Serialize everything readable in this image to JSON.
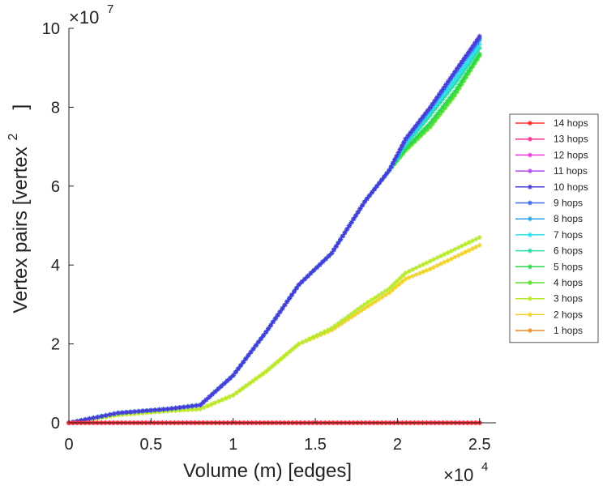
{
  "chart_data": {
    "type": "line",
    "title": "",
    "xlabel": "Volume (m) [edges]",
    "ylabel": "Vertex pairs [vertex",
    "ylabel_superscript": "2",
    "ylabel_close": "]",
    "x_multiplier": "×10",
    "x_multiplier_exp": "4",
    "y_multiplier": "×10",
    "y_multiplier_exp": "7",
    "xlim": [
      0,
      2.6
    ],
    "ylim": [
      0,
      10
    ],
    "x_ticks": [
      0,
      0.5,
      1,
      1.5,
      2,
      2.5
    ],
    "x_tick_labels": [
      "0",
      "0.5",
      "1",
      "1.5",
      "2",
      "2.5"
    ],
    "y_ticks": [
      0,
      2,
      4,
      6,
      8,
      10
    ],
    "y_tick_labels": [
      "0",
      "2",
      "4",
      "6",
      "8",
      "10"
    ],
    "legend_position": "right",
    "grid": false,
    "marker": "star",
    "series": [
      {
        "name": "14 hops",
        "color": "#ff2a2a",
        "x": [
          0,
          2.5
        ],
        "y": [
          0,
          0
        ]
      },
      {
        "name": "13 hops",
        "color": "#ff2a8a",
        "x": [
          0,
          2.5
        ],
        "y": [
          0,
          0
        ]
      },
      {
        "name": "12 hops",
        "color": "#ee3ad6",
        "x": [
          0,
          2.5
        ],
        "y": [
          0,
          0
        ]
      },
      {
        "name": "11 hops",
        "color": "#b04ae8",
        "x": [
          0,
          2.5
        ],
        "y": [
          0,
          0
        ]
      },
      {
        "name": "10 hops",
        "color": "#4a3ad8",
        "x": [
          0,
          0.3,
          0.6,
          0.8,
          1.0,
          1.2,
          1.4,
          1.6,
          1.8,
          1.95,
          2.05,
          2.2,
          2.35,
          2.5
        ],
        "y": [
          0,
          0.25,
          0.35,
          0.45,
          1.2,
          2.3,
          3.5,
          4.3,
          5.6,
          6.4,
          7.2,
          8.0,
          8.9,
          9.8
        ]
      },
      {
        "name": "9 hops",
        "color": "#3a6ae8",
        "x": [
          0,
          0.3,
          0.6,
          0.8,
          1.0,
          1.2,
          1.4,
          1.6,
          1.8,
          1.95,
          2.05,
          2.2,
          2.35,
          2.5
        ],
        "y": [
          0,
          0.25,
          0.35,
          0.45,
          1.2,
          2.3,
          3.5,
          4.3,
          5.6,
          6.4,
          7.2,
          8.0,
          8.9,
          9.75
        ]
      },
      {
        "name": "8 hops",
        "color": "#2aa2ee",
        "x": [
          0,
          0.3,
          0.6,
          0.8,
          1.0,
          1.2,
          1.4,
          1.6,
          1.8,
          1.95,
          2.05,
          2.2,
          2.35,
          2.5
        ],
        "y": [
          0,
          0.25,
          0.35,
          0.45,
          1.2,
          2.3,
          3.5,
          4.3,
          5.6,
          6.4,
          7.15,
          7.95,
          8.85,
          9.7
        ]
      },
      {
        "name": "7 hops",
        "color": "#2ae2ee",
        "x": [
          0,
          0.3,
          0.6,
          0.8,
          1.0,
          1.2,
          1.4,
          1.6,
          1.8,
          1.95,
          2.05,
          2.2,
          2.35,
          2.5
        ],
        "y": [
          0,
          0.25,
          0.35,
          0.45,
          1.2,
          2.3,
          3.5,
          4.3,
          5.6,
          6.4,
          7.1,
          7.9,
          8.7,
          9.6
        ]
      },
      {
        "name": "6 hops",
        "color": "#2ad8a8",
        "x": [
          0,
          0.3,
          0.6,
          0.8,
          1.0,
          1.2,
          1.4,
          1.6,
          1.8,
          1.95,
          2.05,
          2.2,
          2.35,
          2.5
        ],
        "y": [
          0,
          0.25,
          0.35,
          0.45,
          1.2,
          2.3,
          3.5,
          4.3,
          5.6,
          6.4,
          7.05,
          7.8,
          8.6,
          9.5
        ]
      },
      {
        "name": "5 hops",
        "color": "#2ad84a",
        "x": [
          0,
          0.3,
          0.6,
          0.8,
          1.0,
          1.2,
          1.4,
          1.6,
          1.8,
          1.95,
          2.05,
          2.2,
          2.35,
          2.5
        ],
        "y": [
          0,
          0.25,
          0.35,
          0.45,
          1.2,
          2.3,
          3.5,
          4.3,
          5.6,
          6.4,
          6.95,
          7.6,
          8.4,
          9.35
        ]
      },
      {
        "name": "4 hops",
        "color": "#5ae02a",
        "x": [
          0,
          0.3,
          0.6,
          0.8,
          1.0,
          1.2,
          1.4,
          1.6,
          1.8,
          1.95,
          2.05,
          2.2,
          2.35,
          2.5
        ],
        "y": [
          0,
          0.25,
          0.35,
          0.45,
          1.2,
          2.3,
          3.5,
          4.3,
          5.6,
          6.4,
          6.9,
          7.5,
          8.3,
          9.3
        ]
      },
      {
        "name": "3 hops",
        "color": "#b8ea2a",
        "x": [
          0,
          0.3,
          0.6,
          0.8,
          1.0,
          1.2,
          1.4,
          1.6,
          1.8,
          1.95,
          2.05,
          2.2,
          2.35,
          2.5
        ],
        "y": [
          0,
          0.2,
          0.3,
          0.35,
          0.7,
          1.3,
          2.0,
          2.4,
          3.0,
          3.4,
          3.8,
          4.1,
          4.4,
          4.7
        ]
      },
      {
        "name": "2 hops",
        "color": "#f0d22a",
        "x": [
          0,
          0.3,
          0.6,
          0.8,
          1.0,
          1.2,
          1.4,
          1.6,
          1.8,
          1.95,
          2.05,
          2.2,
          2.35,
          2.5
        ],
        "y": [
          0,
          0.2,
          0.3,
          0.35,
          0.7,
          1.3,
          2.0,
          2.35,
          2.9,
          3.3,
          3.65,
          3.9,
          4.2,
          4.5
        ]
      },
      {
        "name": "1 hops",
        "color": "#f08a2a",
        "x": [
          0,
          2.5
        ],
        "y": [
          0,
          0
        ]
      }
    ]
  }
}
